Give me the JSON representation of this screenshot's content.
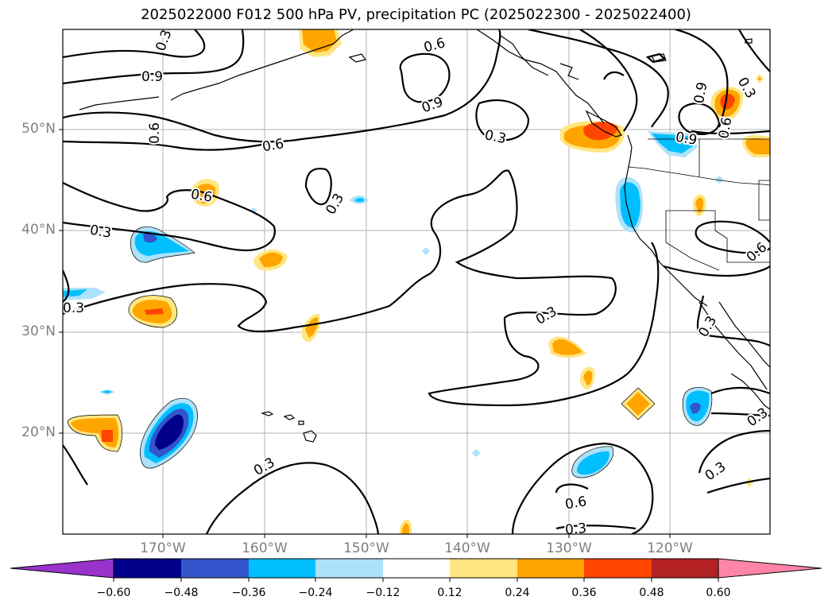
{
  "title": "2025022000 F012 500 hPa PV, precipitation PC (2025022300 - 2025022400)",
  "lat_labels": [
    "50°N",
    "40°N",
    "30°N",
    "20°N"
  ],
  "lon_labels": [
    "170°W",
    "160°W",
    "150°W",
    "140°W",
    "130°W",
    "120°W"
  ],
  "contour_labels": [
    "0.3",
    "0.6",
    "0.9"
  ],
  "colorbar": {
    "ticks": [
      "−0.60",
      "−0.48",
      "−0.36",
      "−0.24",
      "−0.12",
      "0.12",
      "0.24",
      "0.36",
      "0.48",
      "0.60"
    ],
    "colors": [
      "#9933cc",
      "#00008b",
      "#3355cc",
      "#00bfff",
      "#aee2fa",
      "#ffffff",
      "#ffe680",
      "#ffa500",
      "#ff4500",
      "#b22222",
      "#ff85a8"
    ]
  },
  "colors": {
    "grid": "#b0b0b0",
    "contour": "#000000",
    "coast": "#000000",
    "tick_label": "#7f7f7f"
  }
}
